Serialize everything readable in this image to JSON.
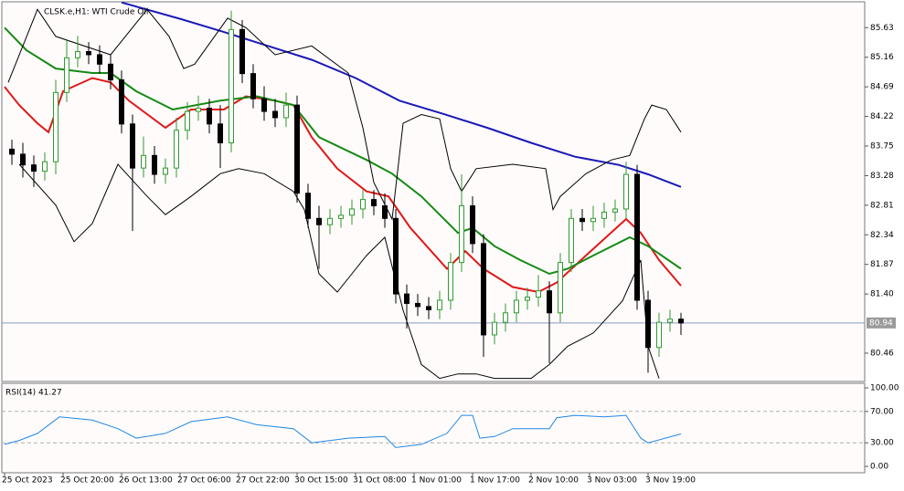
{
  "chart_data": [
    {
      "type": "candlestick",
      "title": "CLSK.e,H1: WTI Crude Oil",
      "x": [
        2,
        5,
        8,
        11,
        14,
        17,
        20,
        23,
        26,
        29,
        32,
        35,
        38,
        41,
        44,
        47,
        50,
        53,
        56,
        59,
        62,
        65,
        68,
        71,
        74,
        77,
        80,
        83,
        86,
        89,
        92,
        95,
        98,
        101,
        104,
        107,
        110,
        113,
        116,
        119,
        122,
        125,
        128,
        131,
        134,
        137,
        140,
        143,
        146,
        149,
        152,
        155,
        158,
        161,
        164,
        167,
        170,
        173,
        176,
        179,
        182,
        185
      ],
      "open": [
        83.7,
        83.62,
        83.45,
        83.35,
        83.5,
        84.6,
        85.15,
        85.25,
        85.2,
        85.05,
        84.8,
        84.1,
        83.4,
        83.6,
        83.3,
        83.4,
        84.0,
        84.3,
        84.35,
        84.1,
        83.8,
        85.6,
        84.9,
        84.5,
        84.3,
        84.2,
        84.4,
        83.0,
        82.6,
        82.5,
        82.6,
        82.65,
        82.75,
        82.9,
        82.8,
        82.6,
        81.4,
        81.25,
        81.2,
        81.15,
        81.3,
        81.9,
        82.8,
        82.2,
        80.75,
        80.95,
        81.1,
        81.3,
        81.35,
        81.45,
        81.1,
        81.9,
        82.6,
        82.55,
        82.6,
        82.7,
        82.75,
        83.3,
        81.3,
        80.55,
        80.95,
        81.0
      ],
      "high": [
        83.85,
        83.8,
        83.6,
        83.65,
        84.8,
        85.45,
        85.5,
        85.4,
        85.35,
        85.2,
        84.95,
        84.25,
        83.9,
        83.75,
        83.55,
        84.2,
        84.45,
        84.55,
        84.5,
        84.4,
        85.9,
        85.75,
        85.05,
        84.7,
        84.5,
        84.6,
        84.55,
        83.15,
        82.8,
        82.75,
        82.8,
        82.9,
        83.05,
        83.05,
        83.0,
        82.75,
        81.55,
        81.4,
        81.35,
        81.45,
        82.05,
        83.3,
        82.95,
        82.35,
        81.1,
        81.25,
        81.45,
        81.5,
        81.7,
        81.6,
        82.05,
        82.75,
        82.75,
        82.8,
        82.85,
        82.9,
        83.5,
        83.45,
        81.45,
        81.1,
        81.15,
        81.1
      ],
      "low": [
        83.45,
        83.25,
        83.1,
        83.2,
        83.3,
        84.45,
        85.0,
        85.05,
        84.9,
        84.65,
        83.95,
        82.4,
        83.25,
        83.15,
        83.15,
        83.25,
        83.85,
        84.15,
        83.95,
        83.4,
        83.65,
        84.75,
        84.35,
        84.15,
        84.05,
        84.05,
        82.85,
        82.45,
        81.8,
        82.35,
        82.45,
        82.5,
        82.6,
        82.65,
        82.45,
        81.25,
        80.85,
        81.05,
        81.0,
        81.0,
        81.15,
        81.75,
        82.05,
        80.4,
        80.6,
        80.8,
        80.95,
        81.15,
        81.2,
        80.3,
        80.95,
        81.75,
        82.4,
        82.4,
        82.45,
        82.55,
        82.6,
        81.15,
        80.15,
        80.4,
        80.8,
        80.75
      ],
      "close": [
        83.62,
        83.45,
        83.35,
        83.5,
        84.6,
        85.15,
        85.25,
        85.2,
        85.05,
        84.8,
        84.1,
        83.4,
        83.6,
        83.3,
        83.4,
        84.0,
        84.3,
        84.35,
        84.1,
        83.8,
        85.6,
        84.9,
        84.5,
        84.3,
        84.2,
        84.4,
        83.0,
        82.6,
        82.5,
        82.6,
        82.65,
        82.75,
        82.9,
        82.8,
        82.6,
        81.4,
        81.25,
        81.2,
        81.15,
        81.3,
        81.9,
        82.8,
        82.2,
        80.75,
        80.95,
        81.1,
        81.3,
        81.35,
        81.45,
        81.1,
        81.9,
        82.6,
        82.55,
        82.6,
        82.7,
        82.75,
        83.3,
        81.3,
        80.55,
        80.95,
        81.0,
        80.94
      ],
      "up_color": "#2f9a2f",
      "down_color": "#000000",
      "xlim": [
        -0.75,
        235.25
      ],
      "ylim": [
        80.01,
        86.04
      ],
      "yticks": [
        85.63,
        85.16,
        84.69,
        84.22,
        83.75,
        83.28,
        82.81,
        82.34,
        81.87,
        {
          "value": 81.4,
          "label": "81.40"
        },
        80.46
      ],
      "last_price": 80.94,
      "series": [
        {
          "color": "#1a1ab8",
          "width": 2,
          "x": [
            32,
            48,
            60,
            72,
            84,
            96,
            108,
            120,
            132,
            144,
            156,
            168,
            176,
            185
          ],
          "values": [
            86.03,
            85.77,
            85.56,
            85.34,
            85.12,
            84.83,
            84.47,
            84.26,
            84.04,
            83.8,
            83.58,
            83.45,
            83.3,
            83.1
          ]
        },
        {
          "color": "#e01818",
          "width": 2,
          "x": [
            0,
            4,
            9,
            12,
            16,
            24,
            29,
            34,
            44,
            51,
            60,
            66,
            74,
            79,
            84,
            91,
            99,
            105,
            111,
            121,
            126,
            131,
            139,
            146,
            151,
            159,
            170,
            174,
            179,
            185
          ],
          "values": [
            84.69,
            84.4,
            84.11,
            83.97,
            84.62,
            84.83,
            84.76,
            84.47,
            84.04,
            84.33,
            84.33,
            84.54,
            84.47,
            84.4,
            83.89,
            83.39,
            83.03,
            82.95,
            82.45,
            81.8,
            82.08,
            81.8,
            81.51,
            81.43,
            81.58,
            82.01,
            82.59,
            82.37,
            81.94,
            81.53
          ]
        },
        {
          "color": "#148a14",
          "width": 2,
          "x": [
            0,
            6,
            14,
            24,
            29,
            36,
            46,
            59,
            69,
            79,
            86,
            99,
            106,
            114,
            124,
            128,
            134,
            141,
            149,
            154,
            161,
            171,
            176,
            185
          ],
          "values": [
            85.63,
            85.27,
            84.98,
            84.91,
            84.91,
            84.62,
            84.33,
            84.47,
            84.54,
            84.4,
            83.89,
            83.53,
            83.31,
            82.95,
            82.37,
            82.45,
            82.16,
            81.94,
            81.72,
            81.8,
            82.01,
            82.3,
            82.16,
            81.8
          ]
        },
        {
          "color": "#000000",
          "width": 1,
          "x": [
            1,
            9,
            14,
            29,
            39,
            45,
            49,
            52,
            61,
            66,
            74,
            84,
            94,
            98,
            101,
            106,
            109,
            114,
            119,
            122,
            125,
            129,
            139,
            148,
            150,
            152,
            159,
            166,
            171,
            175,
            177,
            181,
            185
          ],
          "values": [
            84.76,
            85.92,
            85.49,
            85.2,
            85.92,
            85.49,
            84.98,
            85.05,
            85.78,
            85.63,
            85.2,
            85.34,
            84.91,
            84.04,
            83.17,
            82.59,
            84.11,
            84.25,
            84.18,
            83.39,
            83.03,
            83.39,
            83.46,
            83.39,
            82.74,
            82.95,
            83.31,
            83.53,
            83.6,
            84.18,
            84.4,
            84.33,
            83.97
          ]
        },
        {
          "color": "#000000",
          "width": 1,
          "x": [
            4,
            14,
            19,
            24,
            31,
            39,
            44,
            51,
            59,
            64,
            71,
            79,
            82,
            86,
            91,
            99,
            104,
            109,
            114,
            119,
            124,
            129,
            134,
            144,
            149,
            154,
            161,
            169,
            174,
            176,
            179
          ],
          "values": [
            83.46,
            82.81,
            82.23,
            82.52,
            83.46,
            82.95,
            82.66,
            82.95,
            83.31,
            83.39,
            83.31,
            83.03,
            82.74,
            81.72,
            81.43,
            82.01,
            82.3,
            81.14,
            80.28,
            80.06,
            80.13,
            80.13,
            80.06,
            80.06,
            80.28,
            80.57,
            80.78,
            81.29,
            81.94,
            80.57,
            80.06
          ]
        }
      ]
    },
    {
      "type": "line",
      "title": "RSI(14) 41.27",
      "xlim": [
        -0.75,
        235.25
      ],
      "ylim": [
        -8.1,
        105.8
      ],
      "yticks": [
        {
          "value": 100,
          "label": "100.00"
        },
        {
          "value": 70,
          "label": "70.00"
        },
        {
          "value": 30,
          "label": "30.00"
        },
        {
          "value": 0,
          "label": "0.00"
        }
      ],
      "levels": [
        70,
        30
      ],
      "xticks": [
        {
          "value": 0,
          "label": "25 Oct 2023"
        },
        {
          "value": 16,
          "label": "25 Oct 20:00"
        },
        {
          "value": 32,
          "label": "26 Oct 13:00"
        },
        {
          "value": 48,
          "label": "27 Oct 06:00"
        },
        {
          "value": 64,
          "label": "27 Oct 22:00"
        },
        {
          "value": 80,
          "label": "30 Oct 15:00"
        },
        {
          "value": 96,
          "label": "31 Oct 08:00"
        },
        {
          "value": 112,
          "label": "1 Nov 01:00"
        },
        {
          "value": 128,
          "label": "1 Nov 17:00"
        },
        {
          "value": 144,
          "label": "2 Nov 10:00"
        },
        {
          "value": 160,
          "label": "3 Nov 03:00"
        },
        {
          "value": 176,
          "label": "3 Nov 19:00"
        }
      ],
      "series": [
        {
          "color": "#1e88e5",
          "width": 1,
          "x": [
            0,
            4,
            9,
            15,
            24,
            31,
            36,
            44,
            51,
            61,
            69,
            79,
            84,
            94,
            104,
            107,
            114,
            121,
            125,
            128,
            130,
            134,
            139,
            149,
            151,
            156,
            164,
            170,
            174,
            176,
            185
          ],
          "values": [
            28,
            33,
            42,
            63,
            59,
            48,
            36,
            42,
            57,
            63,
            53,
            48,
            30,
            36,
            38,
            24,
            28,
            42,
            65,
            65,
            36,
            38,
            48,
            48,
            62,
            65,
            63,
            65,
            36,
            30,
            41.27
          ]
        }
      ]
    }
  ]
}
